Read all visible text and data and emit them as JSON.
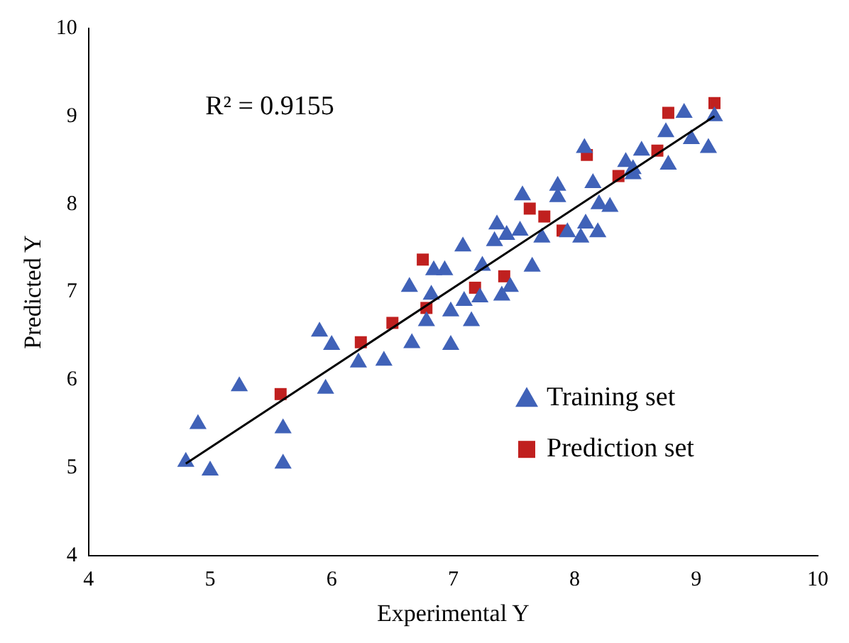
{
  "chart_data": {
    "type": "scatter",
    "xlabel": "Experimental Y",
    "ylabel": "Predicted Y",
    "xlim": [
      4,
      10
    ],
    "ylim": [
      4,
      10
    ],
    "xticks": [
      4,
      5,
      6,
      7,
      8,
      9,
      10
    ],
    "yticks": [
      4,
      5,
      6,
      7,
      8,
      9,
      10
    ],
    "grid": false,
    "legend": "bottom right",
    "annotations": [
      "R² = 0.9155"
    ],
    "series": [
      {
        "name": "Training set",
        "color": "#4062b8",
        "marker": "triangle",
        "x": [
          4.8,
          4.9,
          5.0,
          5.24,
          5.6,
          5.6,
          5.95,
          5.9,
          6.0,
          6.22,
          6.43,
          6.64,
          6.84,
          6.93,
          7.08,
          6.82,
          6.98,
          7.15,
          6.66,
          6.98,
          6.78,
          7.09,
          7.22,
          7.24,
          7.36,
          7.34,
          7.44,
          7.55,
          7.4,
          7.47,
          7.65,
          7.57,
          7.86,
          7.86,
          7.73,
          8.05,
          8.2,
          8.29,
          8.19,
          7.94,
          8.09,
          8.48,
          8.9,
          8.75,
          8.96,
          9.1,
          9.15,
          8.77,
          8.55,
          8.42,
          8.48,
          8.15,
          8.08
        ],
        "values": [
          5.07,
          5.5,
          4.97,
          5.93,
          5.45,
          5.05,
          5.9,
          6.55,
          6.4,
          6.2,
          6.22,
          7.06,
          7.25,
          7.25,
          7.52,
          6.97,
          6.78,
          6.67,
          6.42,
          6.4,
          6.67,
          6.9,
          6.94,
          7.3,
          7.77,
          7.58,
          7.65,
          7.7,
          6.96,
          7.06,
          7.29,
          8.1,
          8.21,
          8.08,
          7.62,
          7.62,
          8.0,
          7.97,
          7.68,
          7.68,
          7.78,
          8.34,
          9.04,
          8.82,
          8.74,
          8.64,
          9.0,
          8.45,
          8.61,
          8.48,
          8.4,
          8.24,
          8.64
        ]
      },
      {
        "name": "Prediction set",
        "color": "#c0201f",
        "marker": "square",
        "x": [
          5.58,
          6.24,
          6.5,
          6.75,
          6.78,
          7.18,
          7.42,
          7.63,
          7.75,
          7.9,
          8.36,
          8.1,
          8.77,
          9.15,
          8.68
        ],
        "values": [
          5.84,
          6.43,
          6.65,
          7.37,
          6.82,
          7.05,
          7.18,
          7.95,
          7.86,
          7.7,
          8.32,
          8.56,
          9.04,
          9.15,
          8.61
        ]
      },
      {
        "type": "line",
        "color": "#000000",
        "marker": "none",
        "line_style": "solid",
        "x": [
          4.8,
          9.15
        ],
        "values": [
          5.05,
          9.0
        ]
      }
    ]
  }
}
